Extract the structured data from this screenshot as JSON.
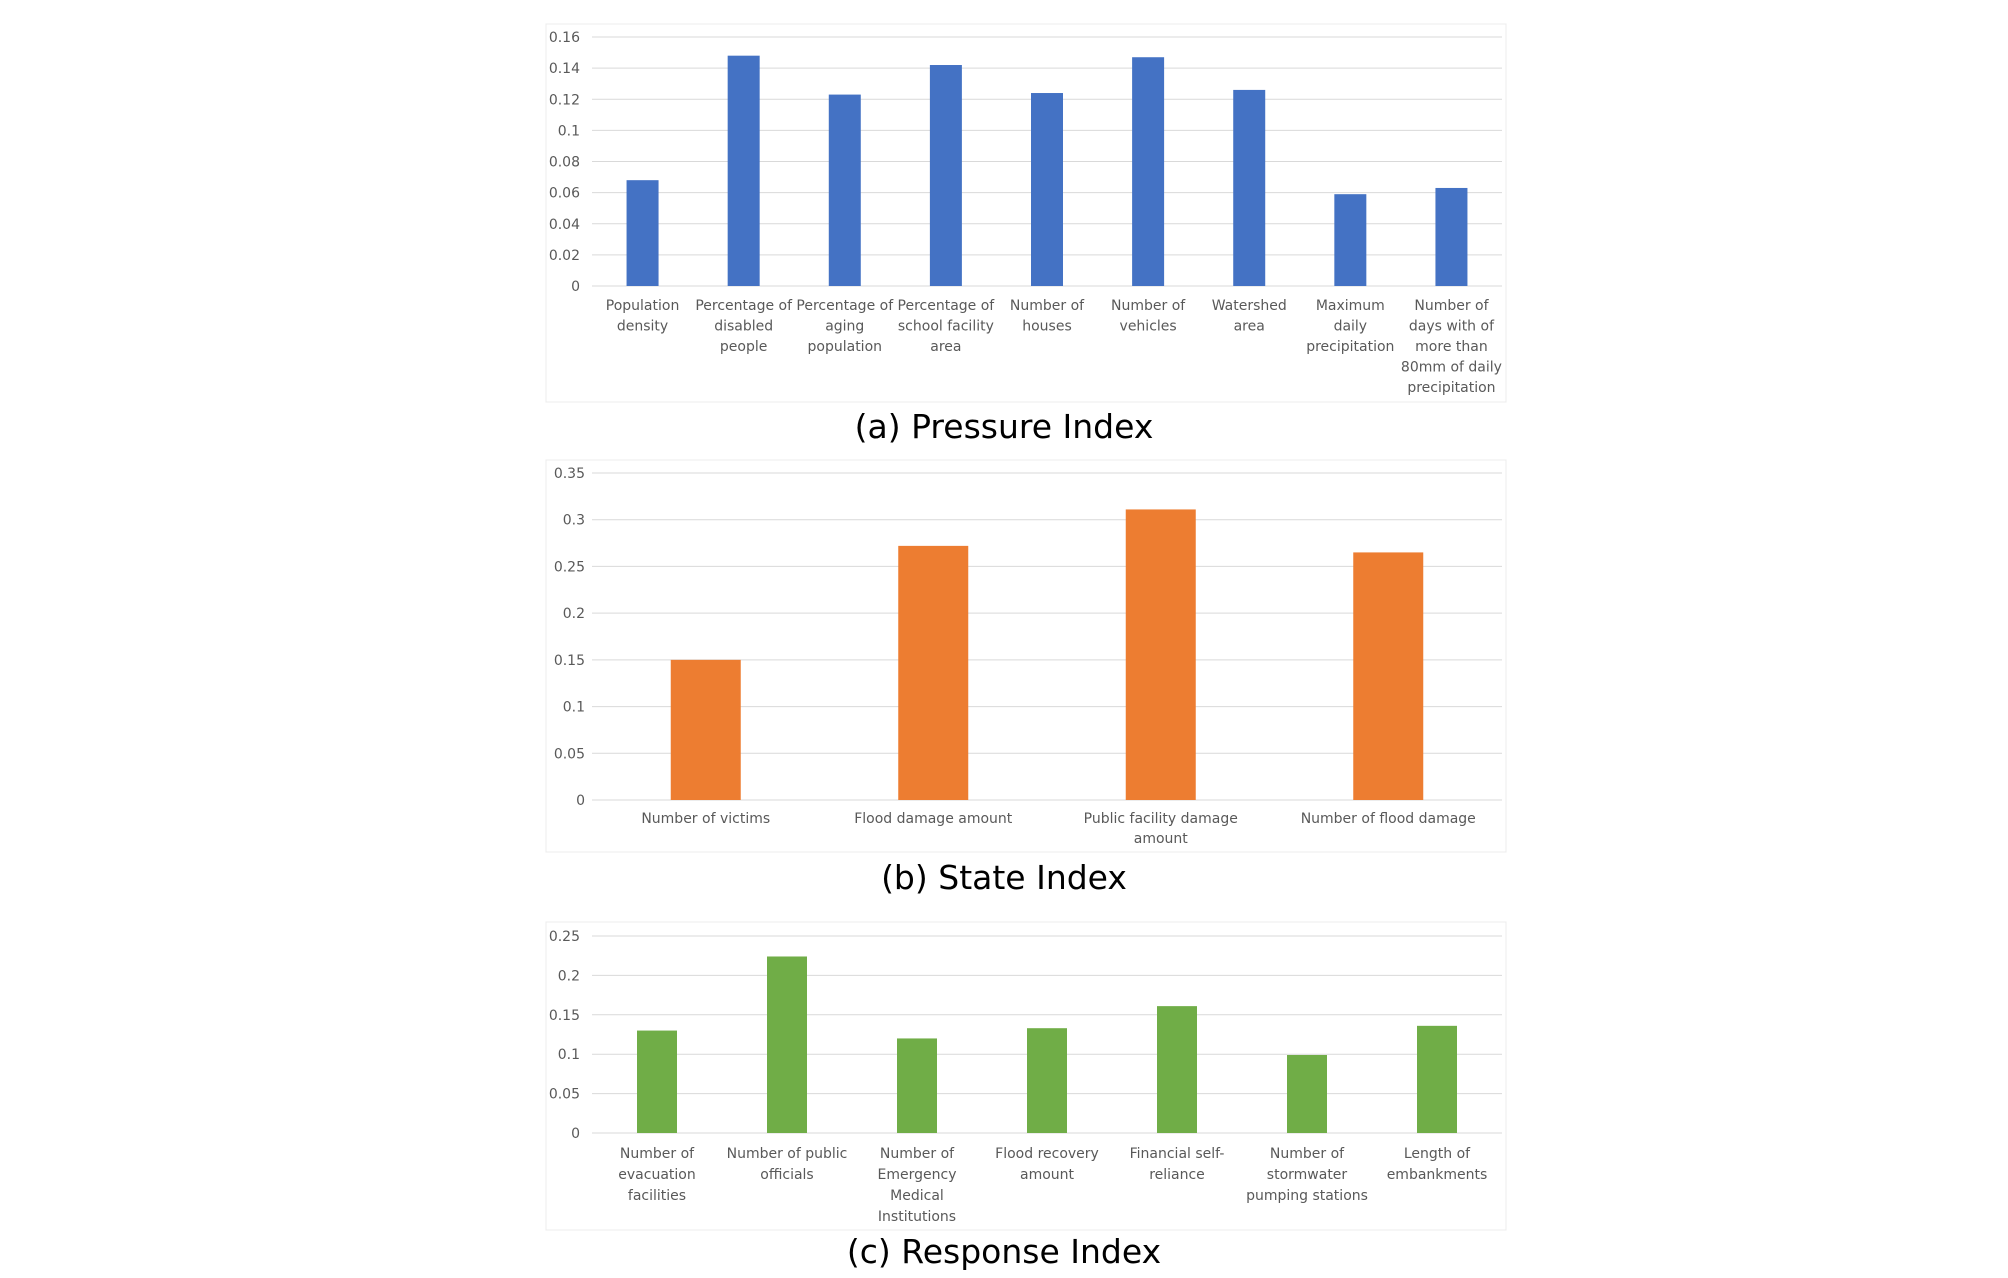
{
  "chart_data": [
    {
      "type": "bar",
      "caption": "(a) Pressure Index",
      "color": "#4472C4",
      "yticks": [
        "0",
        "0.02",
        "0.04",
        "0.06",
        "0.08",
        "0.1",
        "0.12",
        "0.14",
        "0.16"
      ],
      "ylim": [
        0,
        0.16
      ],
      "categories": [
        [
          "Population",
          "density"
        ],
        [
          "Percentage of",
          "disabled",
          "people"
        ],
        [
          "Percentage of",
          "aging",
          "population"
        ],
        [
          "Percentage of",
          "school facility",
          "area"
        ],
        [
          "Number of",
          "houses"
        ],
        [
          "Number of",
          "vehicles"
        ],
        [
          "Watershed",
          "area"
        ],
        [
          "Maximum",
          "daily",
          "precipitation"
        ],
        [
          "Number of",
          "days with of",
          "more than",
          "80mm of daily",
          "precipitation"
        ]
      ],
      "values": [
        0.068,
        0.148,
        0.123,
        0.142,
        0.124,
        0.147,
        0.126,
        0.059,
        0.063
      ]
    },
    {
      "type": "bar",
      "caption": "(b) State Index",
      "color": "#ED7D31",
      "yticks": [
        "0",
        "0.05",
        "0.1",
        "0.15",
        "0.2",
        "0.25",
        "0.3",
        "0.35"
      ],
      "ylim": [
        0,
        0.35
      ],
      "categories": [
        [
          "Number of victims"
        ],
        [
          "Flood damage amount"
        ],
        [
          "Public facility damage",
          "amount"
        ],
        [
          "Number of flood damage"
        ]
      ],
      "values": [
        0.15,
        0.272,
        0.311,
        0.265
      ]
    },
    {
      "type": "bar",
      "caption": "(c) Response Index",
      "color": "#70AD47",
      "yticks": [
        "0",
        "0.05",
        "0.1",
        "0.15",
        "0.2",
        "0.25"
      ],
      "ylim": [
        0,
        0.25
      ],
      "categories": [
        [
          "Number of",
          "evacuation",
          "facilities"
        ],
        [
          "Number of public",
          "officials"
        ],
        [
          "Number of",
          "Emergency",
          "Medical",
          "Institutions"
        ],
        [
          "Flood recovery",
          "amount"
        ],
        [
          "Financial self-",
          "reliance"
        ],
        [
          "Number of",
          "stormwater",
          "pumping stations"
        ],
        [
          "Length of",
          "embankments"
        ]
      ],
      "values": [
        0.13,
        0.224,
        0.12,
        0.133,
        0.161,
        0.099,
        0.136
      ]
    }
  ]
}
